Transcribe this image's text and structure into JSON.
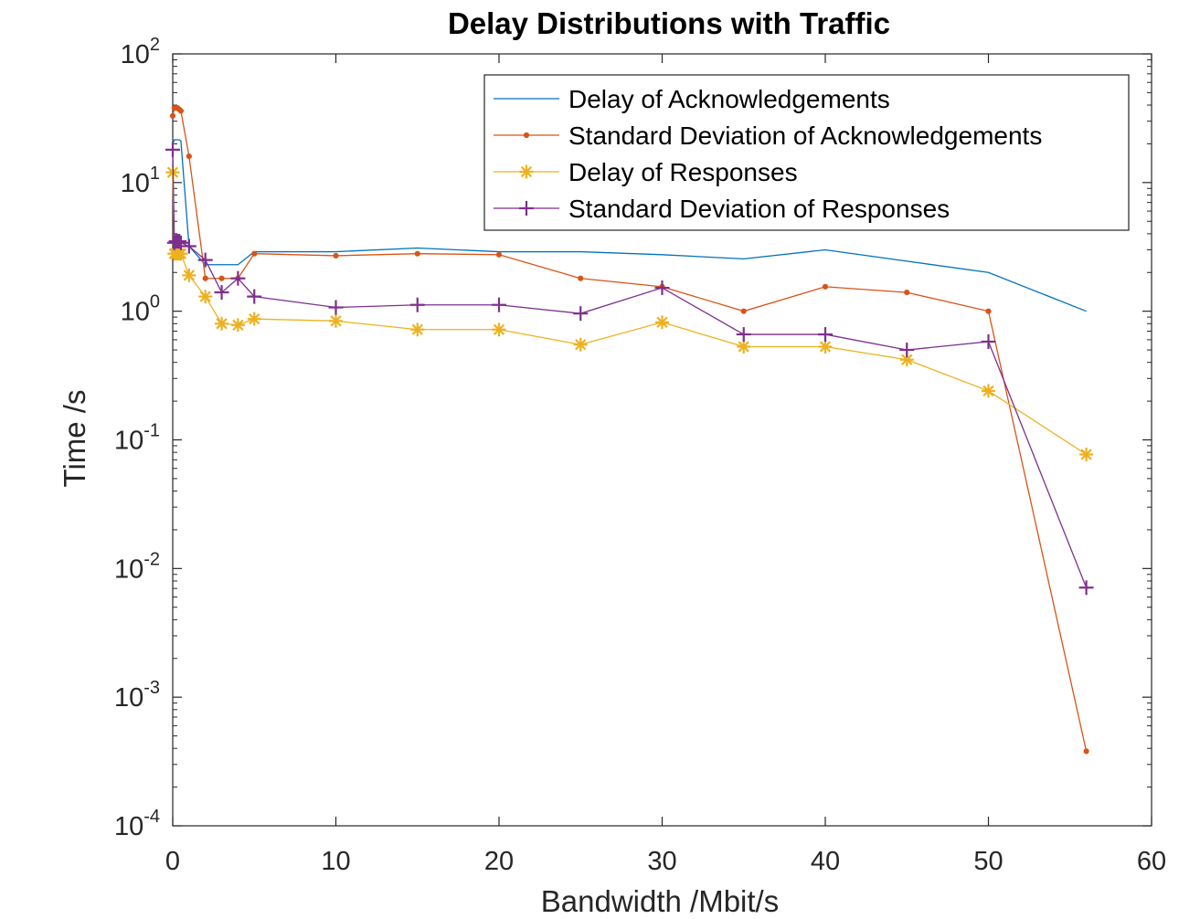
{
  "chart_data": {
    "type": "line",
    "title": "Delay Distributions with Traffic",
    "xlabel": "Bandwidth /Mbit/s",
    "ylabel": "Time /s",
    "xlim": [
      0,
      60
    ],
    "ylim": [
      0.0001,
      100
    ],
    "yscale": "log",
    "xticks": [
      "0",
      "10",
      "20",
      "30",
      "40",
      "50",
      "60"
    ],
    "yticks": [
      {
        "base": "10",
        "exp": "2",
        "value": 100
      },
      {
        "base": "10",
        "exp": "1",
        "value": 10
      },
      {
        "base": "10",
        "exp": "0",
        "value": 1
      },
      {
        "base": "10",
        "exp": "-1",
        "value": 0.1
      },
      {
        "base": "10",
        "exp": "-2",
        "value": 0.01
      },
      {
        "base": "10",
        "exp": "-3",
        "value": 0.001
      },
      {
        "base": "10",
        "exp": "-4",
        "value": 0.0001
      }
    ],
    "grid": false,
    "legend_position": "top-right",
    "series": [
      {
        "name": "Delay of Acknowledgements",
        "color": "#0072BD",
        "marker": "none",
        "x": [
          0,
          0.1,
          0.2,
          0.3,
          0.4,
          0.5,
          1,
          2,
          3,
          4,
          5,
          10,
          15,
          20,
          25,
          30,
          35,
          40,
          45,
          50,
          56
        ],
        "y": [
          20,
          21.5,
          21.5,
          21.5,
          21.5,
          21,
          3.2,
          2.3,
          2.3,
          2.3,
          2.9,
          2.9,
          3.1,
          2.9,
          2.9,
          2.75,
          2.55,
          3.0,
          2.45,
          2.0,
          1.0
        ]
      },
      {
        "name": "Standard Deviation of Acknowledgements",
        "color": "#D95319",
        "marker": "dot",
        "x": [
          0,
          0.1,
          0.2,
          0.3,
          0.4,
          0.5,
          1,
          2,
          3,
          4,
          5,
          10,
          15,
          20,
          25,
          30,
          35,
          40,
          45,
          50,
          56
        ],
        "y": [
          33,
          38,
          38,
          38,
          37,
          36,
          16,
          1.8,
          1.8,
          1.8,
          2.8,
          2.7,
          2.8,
          2.75,
          1.8,
          1.55,
          1.0,
          1.55,
          1.4,
          1.0,
          0.00038
        ]
      },
      {
        "name": "Delay of Responses",
        "color": "#EDB120",
        "marker": "asterisk",
        "x": [
          0,
          0.1,
          0.2,
          0.3,
          0.4,
          0.5,
          1,
          2,
          3,
          4,
          5,
          10,
          15,
          20,
          25,
          30,
          35,
          40,
          45,
          50,
          56
        ],
        "y": [
          12,
          2.8,
          2.8,
          2.8,
          2.8,
          2.8,
          1.9,
          1.3,
          0.8,
          0.78,
          0.87,
          0.84,
          0.72,
          0.72,
          0.55,
          0.82,
          0.53,
          0.53,
          0.42,
          0.24,
          0.077
        ]
      },
      {
        "name": "Standard Deviation of Responses",
        "color": "#7E2F8E",
        "marker": "plus",
        "x": [
          0,
          0.1,
          0.2,
          0.3,
          0.4,
          0.5,
          1,
          2,
          3,
          4,
          5,
          10,
          15,
          20,
          25,
          30,
          35,
          40,
          45,
          50,
          56
        ],
        "y": [
          18,
          3.4,
          3.5,
          3.5,
          3.5,
          3.4,
          3.2,
          2.5,
          1.4,
          1.8,
          1.3,
          1.07,
          1.12,
          1.12,
          0.96,
          1.52,
          0.66,
          0.66,
          0.5,
          0.58,
          0.0071
        ]
      }
    ]
  }
}
